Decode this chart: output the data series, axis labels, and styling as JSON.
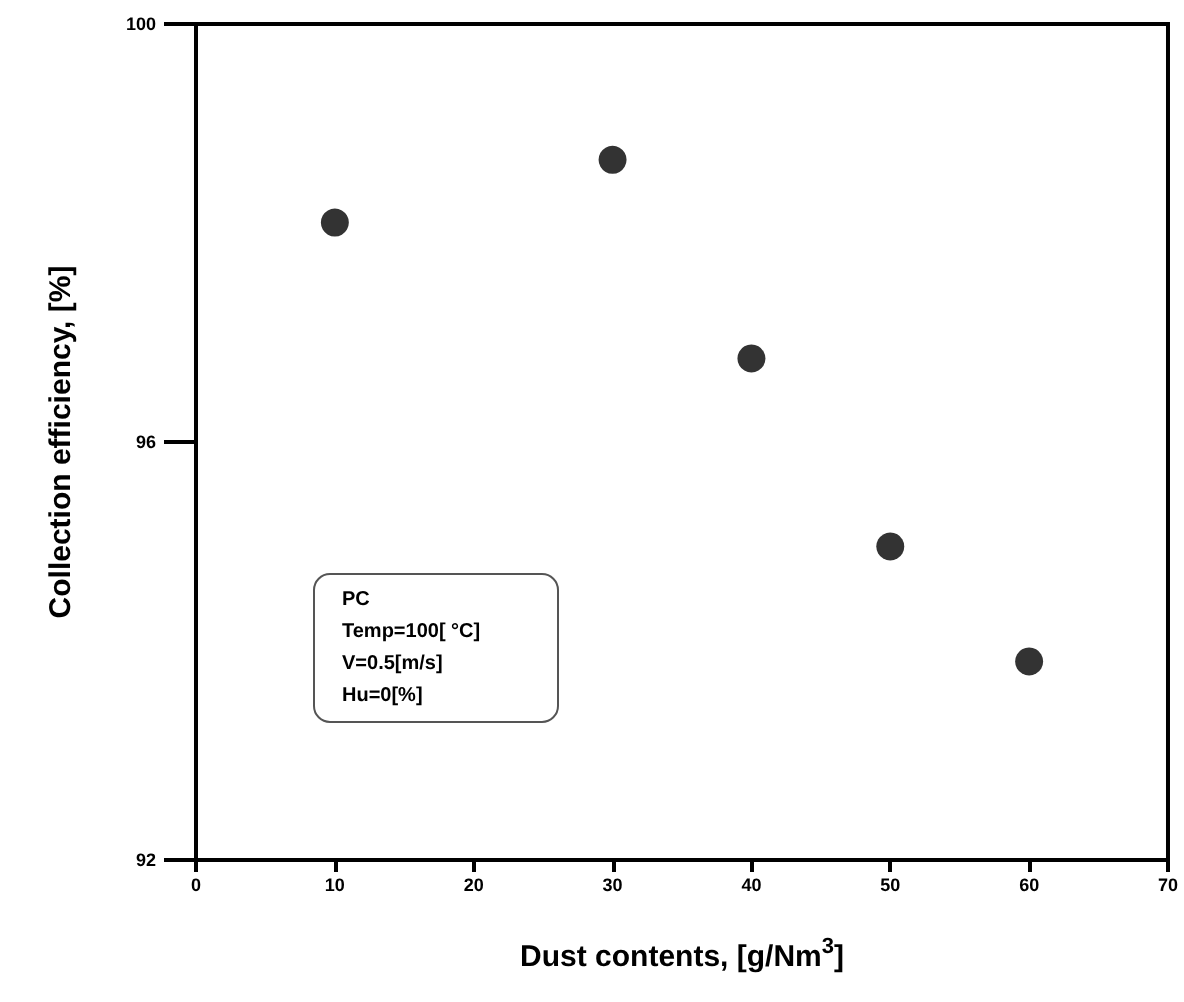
{
  "chart_data": {
    "type": "scatter",
    "xlabel": "Dust contents, [g/Nm$^{3}$]",
    "ylabel": "Collection efficiency, [%]",
    "x": [
      10,
      30,
      40,
      50,
      60
    ],
    "series": [
      {
        "color": "#000000",
        "values": [
          98.1,
          98.7,
          96.8,
          95.0,
          93.9
        ]
      }
    ],
    "xlim": [
      0,
      70
    ],
    "xticks": [
      0,
      10,
      20,
      30,
      40,
      50,
      60,
      70
    ],
    "ylim": [
      92,
      100
    ],
    "yticks": [
      92,
      96,
      100
    ],
    "marker": "circle",
    "grid": false,
    "annotations": [
      "PC",
      "Temp=100[ °C]",
      "V=0.5[m/s]",
      "Hu=0[%]"
    ]
  }
}
